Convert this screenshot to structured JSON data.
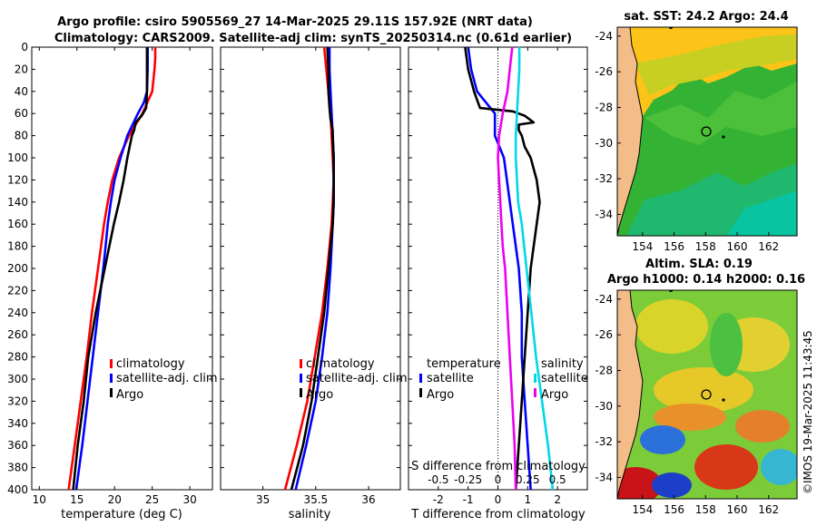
{
  "header": {
    "title_line1": "Argo profile: csiro 5905569_27 14-Mar-2025 29.11S 157.92E (NRT data)",
    "title_line2": "Climatology: CARS2009. Satellite-adj clim: synTS_20250314.nc (0.61d earlier)"
  },
  "credit": "©IMOS 19-Mar-2025 11:43:45",
  "colors": {
    "climatology": "#ff0000",
    "satellite": "#0000ff",
    "argo": "#000000",
    "sat_salinity": "#00d8e8",
    "argo_salinity": "#ee00ee"
  },
  "chart_data": [
    {
      "type": "line",
      "id": "temperature",
      "xlabel": "temperature (deg C)",
      "ylabel": "",
      "xlim": [
        9,
        33
      ],
      "ylim": [
        400,
        0
      ],
      "xticks": [
        10,
        15,
        20,
        25,
        30
      ],
      "yticks": [
        0,
        20,
        40,
        60,
        80,
        100,
        120,
        140,
        160,
        180,
        200,
        220,
        240,
        260,
        280,
        300,
        320,
        340,
        360,
        380,
        400
      ],
      "legend": [
        "climatology",
        "satellite-adj. clim",
        "Argo"
      ],
      "series": [
        {
          "name": "climatology",
          "depth": [
            0,
            10,
            20,
            40,
            60,
            80,
            100,
            120,
            140,
            160,
            180,
            200,
            240,
            280,
            320,
            360,
            400
          ],
          "values": [
            25.4,
            25.4,
            25.3,
            25.0,
            23.7,
            21.9,
            20.6,
            19.7,
            19.1,
            18.6,
            18.2,
            17.8,
            17.0,
            16.3,
            15.5,
            14.7,
            13.9
          ]
        },
        {
          "name": "satellite-adj. clim",
          "depth": [
            0,
            20,
            40,
            50,
            60,
            80,
            100,
            120,
            140,
            160,
            180,
            200,
            240,
            280,
            320,
            360,
            400
          ],
          "values": [
            24.4,
            24.4,
            24.3,
            23.9,
            23.1,
            21.7,
            20.8,
            20.0,
            19.5,
            19.1,
            18.8,
            18.5,
            17.8,
            17.1,
            16.4,
            15.7,
            14.9
          ]
        },
        {
          "name": "Argo",
          "depth": [
            0,
            20,
            40,
            55,
            62,
            68,
            75,
            80,
            90,
            100,
            120,
            140,
            160,
            180,
            200,
            240,
            280,
            320,
            360,
            400
          ],
          "values": [
            24.3,
            24.3,
            24.3,
            24.2,
            23.6,
            22.8,
            22.6,
            22.3,
            22.0,
            21.7,
            21.2,
            20.6,
            19.9,
            19.3,
            18.7,
            17.5,
            16.5,
            15.9,
            15.1,
            14.5
          ]
        }
      ]
    },
    {
      "type": "line",
      "id": "salinity",
      "xlabel": "salinity",
      "xlim": [
        34.6,
        36.3
      ],
      "ylim": [
        400,
        0
      ],
      "xticks": [
        35,
        35.5,
        36
      ],
      "legend": [
        "climatology",
        "satellite-adj. clim",
        "Argo"
      ],
      "series": [
        {
          "name": "climatology",
          "depth": [
            0,
            20,
            40,
            60,
            80,
            100,
            120,
            140,
            160,
            180,
            200,
            240,
            280,
            320,
            360,
            400
          ],
          "values": [
            35.58,
            35.6,
            35.62,
            35.64,
            35.65,
            35.66,
            35.67,
            35.66,
            35.65,
            35.63,
            35.61,
            35.56,
            35.49,
            35.42,
            35.32,
            35.21
          ]
        },
        {
          "name": "satellite-adj. clim",
          "depth": [
            0,
            20,
            40,
            60,
            80,
            100,
            120,
            140,
            160,
            180,
            200,
            240,
            280,
            320,
            360,
            400
          ],
          "values": [
            35.63,
            35.63,
            35.64,
            35.65,
            35.66,
            35.67,
            35.67,
            35.67,
            35.66,
            35.65,
            35.64,
            35.61,
            35.56,
            35.5,
            35.41,
            35.31
          ]
        },
        {
          "name": "Argo",
          "depth": [
            0,
            20,
            40,
            55,
            65,
            75,
            80,
            100,
            120,
            140,
            160,
            180,
            200,
            240,
            280,
            320,
            360,
            400
          ],
          "values": [
            35.61,
            35.62,
            35.62,
            35.63,
            35.64,
            35.66,
            35.66,
            35.67,
            35.67,
            35.67,
            35.66,
            35.64,
            35.62,
            35.58,
            35.52,
            35.46,
            35.38,
            35.27
          ]
        }
      ]
    },
    {
      "type": "line",
      "id": "difference",
      "xlabel": "T difference from climatology",
      "xlabel_top": "S difference from climatology",
      "xlim": [
        -3,
        3
      ],
      "ylim": [
        400,
        0
      ],
      "xticks": [
        -2,
        -1,
        0,
        1,
        2
      ],
      "xticks_top": [
        {
          "label": "-0.5",
          "t": -2
        },
        {
          "label": "-0.25",
          "t": -1
        },
        {
          "label": "0",
          "t": 0
        },
        {
          "label": "0.25",
          "t": 1
        },
        {
          "label": "0.5",
          "t": 2
        }
      ],
      "legend_temperature": {
        "title": "temperature",
        "items": [
          "satellite",
          "Argo"
        ]
      },
      "legend_salinity": {
        "title": "salinity",
        "items": [
          "satellite",
          "Argo"
        ]
      },
      "series": [
        {
          "name": "temperature satellite",
          "depth": [
            0,
            20,
            40,
            60,
            80,
            100,
            120,
            140,
            160,
            180,
            200,
            240,
            280,
            320,
            360,
            400
          ],
          "values": [
            -1.0,
            -0.9,
            -0.7,
            -0.1,
            -0.1,
            0.2,
            0.3,
            0.4,
            0.5,
            0.6,
            0.7,
            0.8,
            0.8,
            0.9,
            1.0,
            1.1
          ]
        },
        {
          "name": "temperature Argo",
          "depth": [
            0,
            20,
            40,
            55,
            58,
            62,
            68,
            70,
            75,
            80,
            90,
            100,
            120,
            140,
            160,
            180,
            200,
            240,
            280,
            320,
            360,
            400
          ],
          "values": [
            -1.1,
            -1.0,
            -0.8,
            -0.6,
            0.5,
            0.9,
            1.2,
            0.7,
            0.7,
            0.8,
            0.9,
            1.1,
            1.3,
            1.4,
            1.3,
            1.2,
            1.1,
            1.0,
            0.9,
            0.8,
            0.7,
            0.6
          ]
        },
        {
          "name": "salinity satellite",
          "depth": [
            0,
            20,
            40,
            60,
            80,
            100,
            120,
            140,
            160,
            180,
            200,
            240,
            280,
            320,
            360,
            400
          ],
          "values": [
            0.18,
            0.18,
            0.17,
            0.16,
            0.15,
            0.15,
            0.16,
            0.17,
            0.2,
            0.22,
            0.24,
            0.28,
            0.32,
            0.37,
            0.42,
            0.46
          ]
        },
        {
          "name": "salinity Argo",
          "depth": [
            0,
            20,
            40,
            60,
            80,
            100,
            120,
            140,
            160,
            180,
            200,
            240,
            280,
            320,
            360,
            400
          ],
          "values": [
            0.12,
            0.1,
            0.08,
            0.04,
            0.01,
            0.0,
            0.01,
            0.02,
            0.03,
            0.04,
            0.06,
            0.08,
            0.1,
            0.12,
            0.14,
            0.15
          ]
        }
      ]
    }
  ],
  "maps": [
    {
      "id": "sst",
      "title": "sat. SST: 24.2 Argo: 24.4",
      "xticks": [
        154,
        156,
        158,
        160,
        162
      ],
      "yticks": [
        -24,
        -26,
        -28,
        -30,
        -32,
        -34
      ],
      "xlim": [
        152.4,
        163.8
      ],
      "ylim": [
        -35.2,
        -23.5
      ],
      "colors": {
        "land": "#f3bd8a",
        "warm": "#fcc318",
        "mid": "#30b830",
        "cool": "#08c4a0"
      },
      "float_lon": 157.92,
      "float_lat": -29.11
    },
    {
      "id": "sla",
      "title": "Altim. SLA: 0.19",
      "subtitle": "Argo h1000: 0.14 h2000: 0.16",
      "xticks": [
        154,
        156,
        158,
        160,
        162
      ],
      "yticks": [
        -24,
        -26,
        -28,
        -30,
        -32,
        -34
      ],
      "xlim": [
        152.4,
        163.8
      ],
      "ylim": [
        -35.2,
        -23.5
      ],
      "colors": {
        "land": "#f3bd8a",
        "base": "#6cc53a",
        "hi": "#e05a18",
        "lo": "#2a70d8"
      },
      "float_lon": 157.92,
      "float_lat": -29.11
    }
  ]
}
